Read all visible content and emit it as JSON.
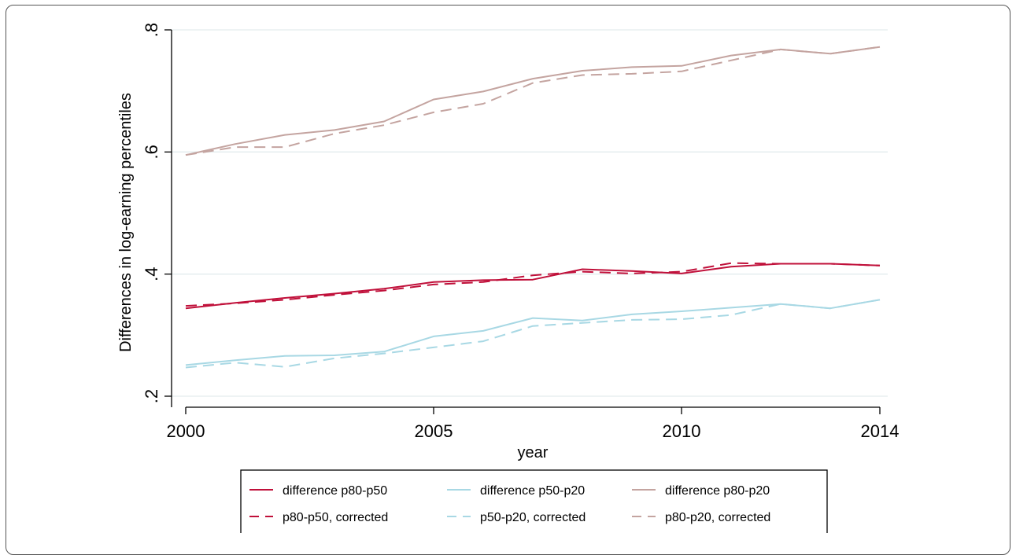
{
  "chart_data": {
    "type": "line",
    "xlabel": "year",
    "ylabel": "Differences in log-earning percentiles",
    "xlim": [
      2000,
      2014
    ],
    "ylim": [
      0.2,
      0.8
    ],
    "xticks": [
      2000,
      2005,
      2010,
      2014
    ],
    "xtick_labels": [
      "2000",
      "2005",
      "2010",
      "2014"
    ],
    "yticks": [
      0.2,
      0.4,
      0.6,
      0.8
    ],
    "ytick_labels": [
      ".2",
      ".4",
      ".6",
      ".8"
    ],
    "grid": true,
    "legend_position": "bottom",
    "x": [
      2000,
      2001,
      2002,
      2003,
      2004,
      2005,
      2006,
      2007,
      2008,
      2009,
      2010,
      2011,
      2012,
      2013,
      2014
    ],
    "series": [
      {
        "name": "difference  p80-p50",
        "color": "#c0103a",
        "dash": "solid",
        "values": [
          0.344,
          0.353,
          0.361,
          0.368,
          0.376,
          0.387,
          0.39,
          0.391,
          0.408,
          0.405,
          0.401,
          0.412,
          0.417,
          0.417,
          0.414
        ]
      },
      {
        "name": "difference  p50-p20",
        "color": "#a8d8e4",
        "dash": "solid",
        "values": [
          0.251,
          0.259,
          0.266,
          0.267,
          0.273,
          0.298,
          0.307,
          0.328,
          0.324,
          0.334,
          0.339,
          0.345,
          0.351,
          0.344,
          0.358
        ]
      },
      {
        "name": "difference  p80-p20",
        "color": "#c4a4a0",
        "dash": "solid",
        "values": [
          0.595,
          0.613,
          0.628,
          0.636,
          0.65,
          0.686,
          0.699,
          0.72,
          0.733,
          0.739,
          0.741,
          0.758,
          0.768,
          0.761,
          0.772
        ]
      },
      {
        "name": "p80-p50, corrected",
        "color": "#c0103a",
        "dash": "dashed",
        "values": [
          0.348,
          0.352,
          0.358,
          0.366,
          0.373,
          0.383,
          0.387,
          0.398,
          0.404,
          0.401,
          0.404,
          0.418,
          0.417,
          0.417,
          0.414
        ]
      },
      {
        "name": "p50-p20, corrected",
        "color": "#a8d8e4",
        "dash": "dashed",
        "values": [
          0.247,
          0.255,
          0.248,
          0.262,
          0.27,
          0.28,
          0.29,
          0.315,
          0.32,
          0.325,
          0.326,
          0.333,
          0.351,
          0.344,
          0.358
        ]
      },
      {
        "name": "p80-p20, corrected",
        "color": "#c4a4a0",
        "dash": "dashed",
        "values": [
          0.595,
          0.608,
          0.608,
          0.63,
          0.644,
          0.665,
          0.679,
          0.713,
          0.726,
          0.728,
          0.732,
          0.75,
          0.768,
          0.761,
          0.772
        ]
      }
    ]
  }
}
